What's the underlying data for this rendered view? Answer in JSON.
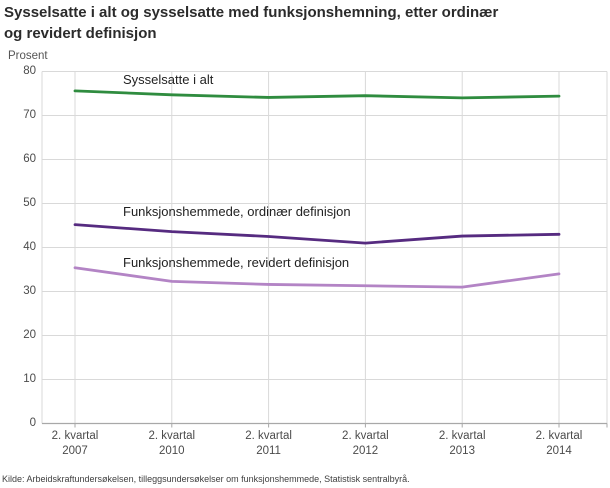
{
  "page": {
    "title_lines": [
      "Sysselsatte i alt og sysselsatte med funksjonshemning, etter ordinær",
      "og revidert definisjon"
    ],
    "source": "Kilde: Arbeidskraftundersøkelsen, tilleggsundersøkelser om funksjonshemmede, Statistisk sentralbyrå."
  },
  "chart_data": {
    "type": "line",
    "title": "Sysselsatte i alt og sysselsatte med funksjonshemning, etter ordinær og revidert definisjon",
    "ylabel": "Prosent",
    "xlabel": "",
    "ylim": [
      0,
      80
    ],
    "ytick_step": 10,
    "grid": true,
    "legend_position": "inline-annotations",
    "categories": [
      "2. kvartal 2007",
      "2. kvartal 2010",
      "2. kvartal 2011",
      "2. kvartal 2012",
      "2. kvartal 2013",
      "2. kvartal 2014"
    ],
    "series": [
      {
        "name": "Sysselsatte i alt",
        "color": "#2f8c3f",
        "values": [
          75.6,
          74.7,
          74.1,
          74.5,
          74.0,
          74.4
        ]
      },
      {
        "name": "Funksjonshemmede, ordinær definisjon",
        "color": "#562b80",
        "values": [
          45.2,
          43.6,
          42.5,
          41.0,
          42.6,
          43.0
        ]
      },
      {
        "name": "Funksjonshemmede, revidert definisjon",
        "color": "#b384c5",
        "values": [
          35.4,
          32.3,
          31.6,
          31.3,
          31.0,
          34.0
        ]
      }
    ],
    "colors": {
      "gridline": "#d9d9d9",
      "axis": "#a8a8a8",
      "tick_label": "#4b4b4b"
    }
  }
}
